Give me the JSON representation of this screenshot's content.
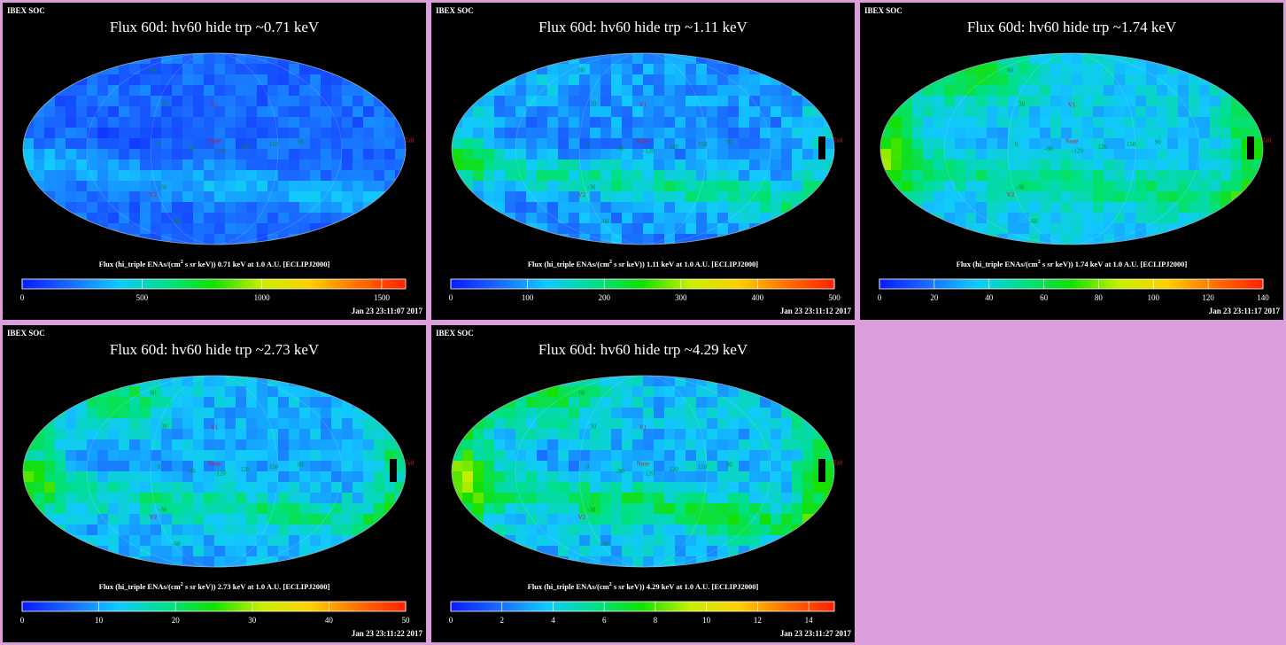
{
  "panels": [
    {
      "header": "IBEX SOC",
      "title": "Flux   60d: hv60 hide trp ~0.71 keV",
      "colorbar_label_pre": "Flux (hi_triple ENAs/(cm",
      "colorbar_label_sup": "2",
      "colorbar_label_post": " s sr keV))  0.71 keV at 1.0 A.U. [ECLIPJ2000]",
      "ticks": [
        "0",
        "500",
        "1000",
        "1500"
      ],
      "tick_values": [
        0,
        500,
        1000,
        1500
      ],
      "max": 1600,
      "timestamp": "Jan 23 23:11:07 2017"
    },
    {
      "header": "IBEX SOC",
      "title": "Flux   60d: hv60 hide trp ~1.11 keV",
      "colorbar_label_pre": "Flux (hi_triple ENAs/(cm",
      "colorbar_label_sup": "2",
      "colorbar_label_post": " s sr keV))  1.11 keV at 1.0 A.U. [ECLIPJ2000]",
      "ticks": [
        "0",
        "100",
        "200",
        "300",
        "400",
        "500"
      ],
      "tick_values": [
        0,
        100,
        200,
        300,
        400,
        500
      ],
      "max": 500,
      "timestamp": "Jan 23 23:11:12 2017"
    },
    {
      "header": "IBEX SOC",
      "title": "Flux   60d: hv60 hide trp ~1.74 keV",
      "colorbar_label_pre": "Flux (hi_triple ENAs/(cm",
      "colorbar_label_sup": "2",
      "colorbar_label_post": " s sr keV))  1.74 keV at 1.0 A.U. [ECLIPJ2000]",
      "ticks": [
        "0",
        "20",
        "40",
        "60",
        "80",
        "100",
        "120",
        "140"
      ],
      "tick_values": [
        0,
        20,
        40,
        60,
        80,
        100,
        120,
        140
      ],
      "max": 140,
      "timestamp": "Jan 23 23:11:17 2017"
    },
    {
      "header": "IBEX SOC",
      "title": "Flux   60d: hv60 hide trp ~2.73 keV",
      "colorbar_label_pre": "Flux (hi_triple ENAs/(cm",
      "colorbar_label_sup": "2",
      "colorbar_label_post": " s sr keV))  2.73 keV at 1.0 A.U. [ECLIPJ2000]",
      "ticks": [
        "0",
        "10",
        "20",
        "30",
        "40",
        "50"
      ],
      "tick_values": [
        0,
        10,
        20,
        30,
        40,
        50
      ],
      "max": 50,
      "timestamp": "Jan 23 23:11:22 2017"
    },
    {
      "header": "IBEX SOC",
      "title": "Flux   60d: hv60 hide trp ~4.29 keV",
      "colorbar_label_pre": "Flux (hi_triple ENAs/(cm",
      "colorbar_label_sup": "2",
      "colorbar_label_post": " s sr keV))  4.29 keV at 1.0 A.U. [ECLIPJ2000]",
      "ticks": [
        "0",
        "2",
        "4",
        "6",
        "8",
        "10",
        "12",
        "14"
      ],
      "tick_values": [
        0,
        2,
        4,
        6,
        8,
        10,
        12,
        14
      ],
      "max": 15,
      "timestamp": "Jan 23 23:11:27 2017"
    }
  ],
  "map_labels": {
    "red": [
      "V1",
      "V2",
      "Nose",
      "Tail"
    ],
    "green": [
      "60",
      "30",
      "0",
      "-30",
      "-60",
      "-90",
      "90",
      "-120",
      "120",
      "150"
    ]
  },
  "colors": {
    "page_background": "#dc9ddc",
    "panel_background": "#000000",
    "colormap": [
      "#0a1aff",
      "#1a6aff",
      "#12c8ff",
      "#00e08a",
      "#14e000",
      "#c8f000",
      "#ffd000",
      "#ff7000",
      "#ff2000"
    ]
  }
}
